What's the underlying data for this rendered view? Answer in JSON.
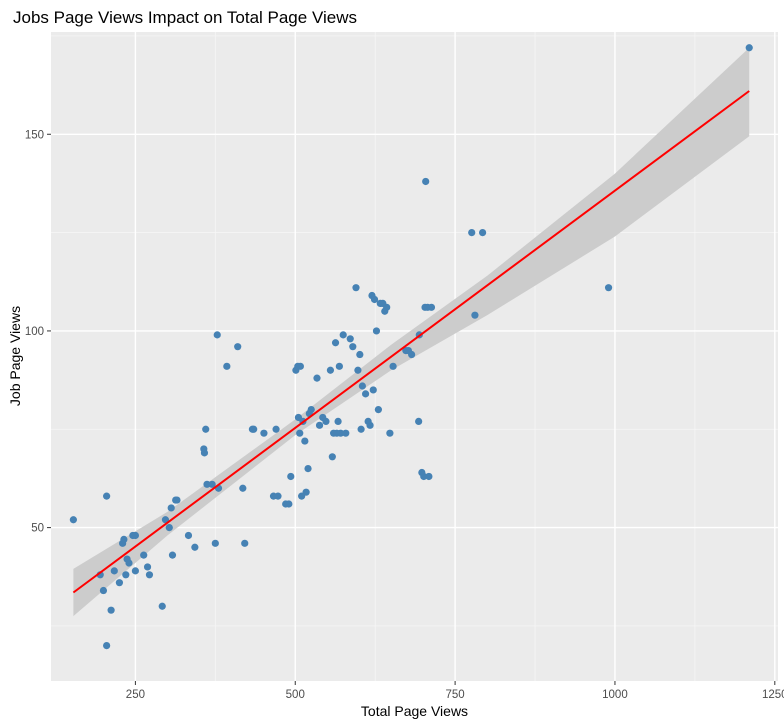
{
  "chart_data": {
    "type": "scatter",
    "title": "Jobs Page Views Impact on Total Page Views",
    "xlabel": "Total Page Views",
    "ylabel": "Job Page Views",
    "xlim": [
      118,
      1255
    ],
    "ylim": [
      11,
      176
    ],
    "x_ticks": [
      250,
      500,
      750,
      1000,
      1250
    ],
    "x_tick_labels": [
      "250",
      "500",
      "750",
      "1000",
      "1250"
    ],
    "y_ticks": [
      50,
      100,
      150
    ],
    "y_tick_labels": [
      "50",
      "100",
      "150"
    ],
    "grid": true,
    "background": "#ebebeb",
    "point_color": "#4682b4",
    "line_color": "#ff0000",
    "band_color": "#cccccc",
    "regression": {
      "x_start": 153,
      "y_start": 33.5,
      "x_end": 1210,
      "y_end": 161,
      "band": [
        {
          "x": 153,
          "lo": 27.5,
          "hi": 39.5
        },
        {
          "x": 300,
          "lo": 48,
          "hi": 54
        },
        {
          "x": 500,
          "lo": 73.5,
          "hi": 77.5
        },
        {
          "x": 650,
          "lo": 90,
          "hi": 96.5
        },
        {
          "x": 800,
          "lo": 104,
          "hi": 114
        },
        {
          "x": 1000,
          "lo": 124,
          "hi": 140
        },
        {
          "x": 1210,
          "lo": 149.5,
          "hi": 172
        }
      ]
    },
    "series": [
      {
        "x": [
          153,
          195,
          200,
          205,
          205,
          212,
          217,
          225,
          230,
          232,
          235,
          237,
          240,
          246,
          250,
          250,
          263,
          269,
          272,
          292,
          297,
          303,
          306,
          308,
          313,
          315,
          333,
          343,
          357,
          358,
          360,
          362,
          370,
          375,
          378,
          380,
          393,
          410,
          418,
          421,
          433,
          435,
          451,
          466,
          470,
          473,
          485,
          490,
          493,
          501,
          504,
          505,
          507,
          508,
          510,
          512,
          515,
          517,
          520,
          522,
          525,
          534,
          538,
          543,
          548,
          555,
          558,
          560,
          563,
          565,
          567,
          569,
          571,
          575,
          579,
          586,
          590,
          595,
          598,
          601,
          603,
          605,
          610,
          614,
          617,
          620,
          622,
          624,
          627,
          630,
          633,
          637,
          640,
          643,
          648,
          653,
          673,
          677,
          682,
          693,
          694,
          698,
          701,
          703,
          704,
          707,
          709,
          713,
          776,
          781,
          793,
          990,
          1210
        ],
        "y": [
          52,
          38,
          34,
          20,
          58,
          29,
          39,
          36,
          46,
          47,
          38,
          42,
          41,
          48,
          39,
          48,
          43,
          40,
          38,
          30,
          52,
          50,
          55,
          43,
          57,
          57,
          48,
          45,
          70,
          69,
          75,
          61,
          61,
          46,
          99,
          60,
          91,
          96,
          60,
          46,
          75,
          75,
          74,
          58,
          75,
          58,
          56,
          56,
          63,
          90,
          91,
          78,
          74,
          91,
          58,
          77,
          72,
          59,
          65,
          79,
          80,
          88,
          76,
          78,
          77,
          90,
          68,
          74,
          97,
          74,
          77,
          91,
          74,
          99,
          74,
          98,
          96,
          111,
          90,
          94,
          75,
          86,
          84,
          77,
          76,
          109,
          85,
          108,
          100,
          80,
          107,
          107,
          105,
          106,
          74,
          91,
          95,
          95,
          94,
          77,
          99,
          64,
          63,
          106,
          138,
          106,
          63,
          106,
          125,
          104,
          125,
          111,
          172
        ]
      }
    ]
  }
}
